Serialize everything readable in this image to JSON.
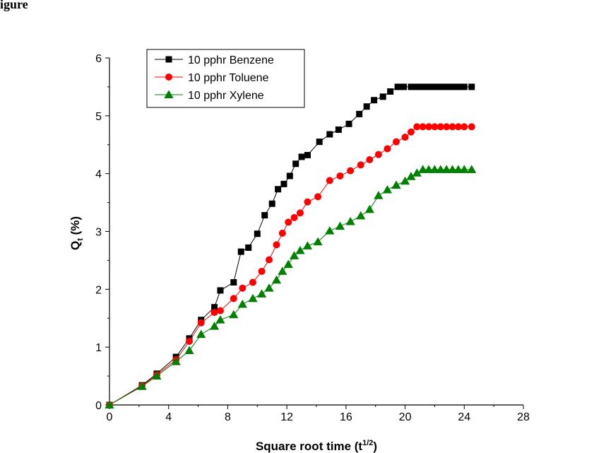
{
  "header_fragment": "igure",
  "chart_data": {
    "type": "line",
    "title": "",
    "xlabel": "Square root time (t",
    "xlabel_sup": "1/2",
    "xlabel_close": ")",
    "ylabel": "Q",
    "ylabel_sub": "t",
    "ylabel_unit": " (%)",
    "xlim": [
      0,
      28
    ],
    "ylim": [
      0,
      6
    ],
    "xticks": [
      0,
      4,
      8,
      12,
      16,
      20,
      24,
      28
    ],
    "yticks": [
      0,
      1,
      2,
      3,
      4,
      5,
      6
    ],
    "grid": false,
    "legend_position": "top-left",
    "series": [
      {
        "name": "10 pphr Benzene",
        "color": "#000000",
        "marker": "square",
        "x": [
          0,
          2.2,
          3.2,
          4.5,
          5.4,
          6.2,
          7.1,
          7.5,
          8.4,
          8.9,
          9.4,
          10.0,
          10.5,
          11.0,
          11.4,
          11.8,
          12.2,
          12.6,
          13.0,
          13.4,
          14.2,
          14.9,
          15.5,
          16.2,
          16.9,
          17.4,
          17.9,
          18.5,
          19.0,
          19.5,
          19.9,
          20.4,
          20.8,
          21.2,
          21.6,
          22.0,
          22.4,
          22.8,
          23.2,
          23.6,
          24.0,
          24.5
        ],
        "y": [
          0,
          0.34,
          0.54,
          0.83,
          1.15,
          1.47,
          1.69,
          1.98,
          2.12,
          2.65,
          2.72,
          2.96,
          3.28,
          3.48,
          3.73,
          3.82,
          3.96,
          4.17,
          4.29,
          4.32,
          4.55,
          4.68,
          4.76,
          4.86,
          5.03,
          5.16,
          5.27,
          5.33,
          5.42,
          5.5,
          5.5,
          5.5,
          5.5,
          5.5,
          5.5,
          5.5,
          5.5,
          5.5,
          5.5,
          5.5,
          5.5,
          5.5
        ]
      },
      {
        "name": "10 pphr Toluene",
        "color": "#ff0000",
        "marker": "circle",
        "x": [
          0,
          2.2,
          3.2,
          4.5,
          5.4,
          6.2,
          7.1,
          7.5,
          8.4,
          9.0,
          9.7,
          10.3,
          10.8,
          11.3,
          11.7,
          12.1,
          12.5,
          12.9,
          13.4,
          14.1,
          14.9,
          15.6,
          16.3,
          17.0,
          17.6,
          18.2,
          18.8,
          19.4,
          20.0,
          20.4,
          20.8,
          21.2,
          21.6,
          22.0,
          22.4,
          22.8,
          23.2,
          23.6,
          24.0,
          24.5
        ],
        "y": [
          0,
          0.33,
          0.52,
          0.78,
          1.1,
          1.42,
          1.6,
          1.63,
          1.84,
          2.02,
          2.12,
          2.31,
          2.51,
          2.77,
          2.97,
          3.16,
          3.24,
          3.32,
          3.51,
          3.6,
          3.88,
          3.96,
          4.05,
          4.15,
          4.24,
          4.33,
          4.43,
          4.55,
          4.63,
          4.72,
          4.81,
          4.81,
          4.81,
          4.81,
          4.81,
          4.81,
          4.81,
          4.81,
          4.81,
          4.81
        ],
        "y_fix_note": ""
      },
      {
        "name": "10 pphr Xylene",
        "color": "#008000",
        "marker": "triangle",
        "x": [
          0,
          2.2,
          3.2,
          4.5,
          5.4,
          6.2,
          7.1,
          7.5,
          8.4,
          9.0,
          9.7,
          10.3,
          10.8,
          11.3,
          11.7,
          12.1,
          12.5,
          12.9,
          13.4,
          14.1,
          14.9,
          15.6,
          16.3,
          17.0,
          17.6,
          18.2,
          18.8,
          19.4,
          20.0,
          20.4,
          20.8,
          21.2,
          21.6,
          22.0,
          22.4,
          22.8,
          23.2,
          23.6,
          24.0,
          24.5
        ],
        "y": [
          0,
          0.32,
          0.5,
          0.75,
          0.94,
          1.22,
          1.36,
          1.47,
          1.56,
          1.74,
          1.84,
          1.92,
          2.02,
          2.16,
          2.31,
          2.43,
          2.58,
          2.67,
          2.75,
          2.82,
          3.01,
          3.09,
          3.17,
          3.27,
          3.38,
          3.62,
          3.72,
          3.8,
          3.87,
          3.95,
          4.01,
          4.07,
          4.07,
          4.07,
          4.07,
          4.07,
          4.07,
          4.07,
          4.07,
          4.07
        ]
      }
    ]
  }
}
